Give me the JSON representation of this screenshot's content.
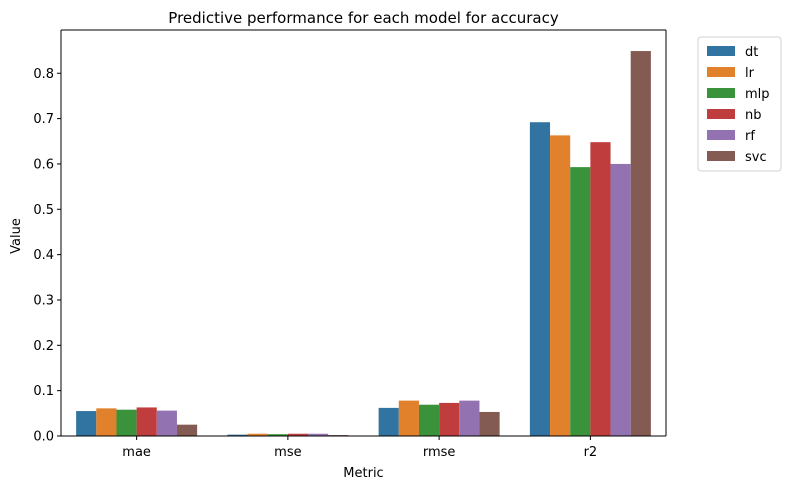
{
  "chart_data": {
    "type": "bar",
    "title": "Predictive performance for each model for accuracy",
    "xlabel": "Metric",
    "ylabel": "Value",
    "ylim": [
      0,
      0.8954
    ],
    "yticks": [
      "0.0",
      "0.1",
      "0.2",
      "0.3",
      "0.4",
      "0.5",
      "0.6",
      "0.7",
      "0.8"
    ],
    "categories": [
      "mae",
      "mse",
      "rmse",
      "r2"
    ],
    "legend_position": "outside top-right",
    "grid": false,
    "series": [
      {
        "name": "dt",
        "color": "#3274a1",
        "values": [
          0.055,
          0.003,
          0.062,
          0.692
        ]
      },
      {
        "name": "lr",
        "color": "#e1812c",
        "values": [
          0.061,
          0.005,
          0.078,
          0.663
        ]
      },
      {
        "name": "mlp",
        "color": "#3a923a",
        "values": [
          0.058,
          0.004,
          0.069,
          0.593
        ]
      },
      {
        "name": "nb",
        "color": "#c03d3e",
        "values": [
          0.063,
          0.005,
          0.073,
          0.648
        ]
      },
      {
        "name": "rf",
        "color": "#9372b2",
        "values": [
          0.056,
          0.005,
          0.078,
          0.6
        ]
      },
      {
        "name": "svc",
        "color": "#845b53",
        "values": [
          0.025,
          0.002,
          0.053,
          0.849
        ]
      }
    ]
  }
}
